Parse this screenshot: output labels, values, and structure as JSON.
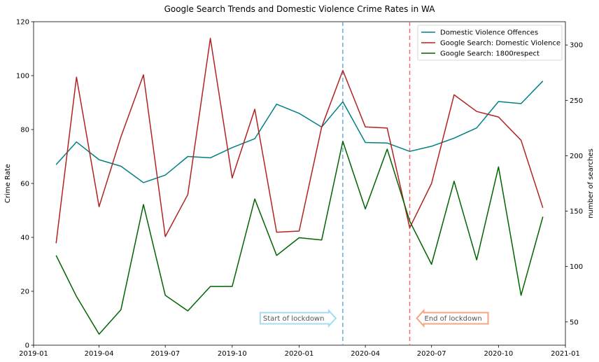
{
  "chart_data": {
    "type": "line",
    "title": "Google Search Trends and Domestic Violence Crime Rates in WA",
    "ylabel_left": "Crime Rate",
    "ylabel_right": "number of searches",
    "xlabel": "",
    "x_axis_type": "date",
    "xlim": [
      "2019-01-01",
      "2021-01-01"
    ],
    "ylim_left": [
      0,
      120
    ],
    "ylim_right": [
      29,
      321
    ],
    "x_tick_labels": [
      "2019-01",
      "2019-04",
      "2019-07",
      "2019-10",
      "2020-01",
      "2020-04",
      "2020-07",
      "2020-10",
      "2021-01"
    ],
    "x_tick_dates": [
      "2019-01-01",
      "2019-04-01",
      "2019-07-01",
      "2019-10-01",
      "2020-01-01",
      "2020-04-01",
      "2020-07-01",
      "2020-10-01",
      "2021-01-01"
    ],
    "y_left_ticks": [
      0,
      20,
      40,
      60,
      80,
      100,
      120
    ],
    "y_right_ticks": [
      50,
      100,
      150,
      200,
      250,
      300
    ],
    "grid": false,
    "legend_position": "top-right",
    "x": [
      "2019-02-01",
      "2019-03-01",
      "2019-04-01",
      "2019-05-01",
      "2019-06-01",
      "2019-07-01",
      "2019-08-01",
      "2019-09-01",
      "2019-10-01",
      "2019-11-01",
      "2019-12-01",
      "2020-01-01",
      "2020-02-01",
      "2020-03-01",
      "2020-04-01",
      "2020-05-01",
      "2020-06-01",
      "2020-07-01",
      "2020-08-01",
      "2020-09-01",
      "2020-10-01",
      "2020-11-01",
      "2020-12-01"
    ],
    "series": [
      {
        "name": "Domestic Violence Offences",
        "axis": "left",
        "color": "#008080",
        "values": [
          67.0,
          75.4,
          68.8,
          66.4,
          60.3,
          63.1,
          70.0,
          69.5,
          73.3,
          76.6,
          89.4,
          86.0,
          80.9,
          90.3,
          75.2,
          75.0,
          71.9,
          73.8,
          76.8,
          80.6,
          90.4,
          89.6,
          98.0
        ]
      },
      {
        "name": "Google Search: Domestic Violence",
        "axis": "right",
        "color": "#b22222",
        "values": [
          121,
          271,
          154,
          217,
          273,
          127,
          165,
          306,
          180,
          242,
          131,
          132,
          226,
          277,
          226,
          225,
          135,
          175,
          255,
          240,
          235,
          214,
          153
        ]
      },
      {
        "name": "Google Search: 1800respect",
        "axis": "right",
        "color": "#006400",
        "values": [
          110,
          73,
          39,
          61,
          156,
          74,
          60,
          82,
          82,
          161,
          110,
          126,
          124,
          213,
          152,
          206,
          141,
          102,
          177,
          106,
          190,
          74,
          145
        ]
      }
    ],
    "vertical_lines": [
      {
        "date": "2020-03-01",
        "color": "#6baed6",
        "style": "dashed"
      },
      {
        "date": "2020-06-01",
        "color": "#fb6a6a",
        "style": "dashed"
      }
    ],
    "annotations": [
      {
        "text": "Start of lockdown",
        "arrow": "right",
        "date": "2020-03-01",
        "y_left": 10,
        "color": "#6baed6",
        "border": "#a6dcef"
      },
      {
        "text": "End of lockdown",
        "arrow": "left",
        "date": "2020-06-01",
        "y_left": 10,
        "color": "#ff8c69",
        "border": "#f4a582"
      }
    ]
  }
}
